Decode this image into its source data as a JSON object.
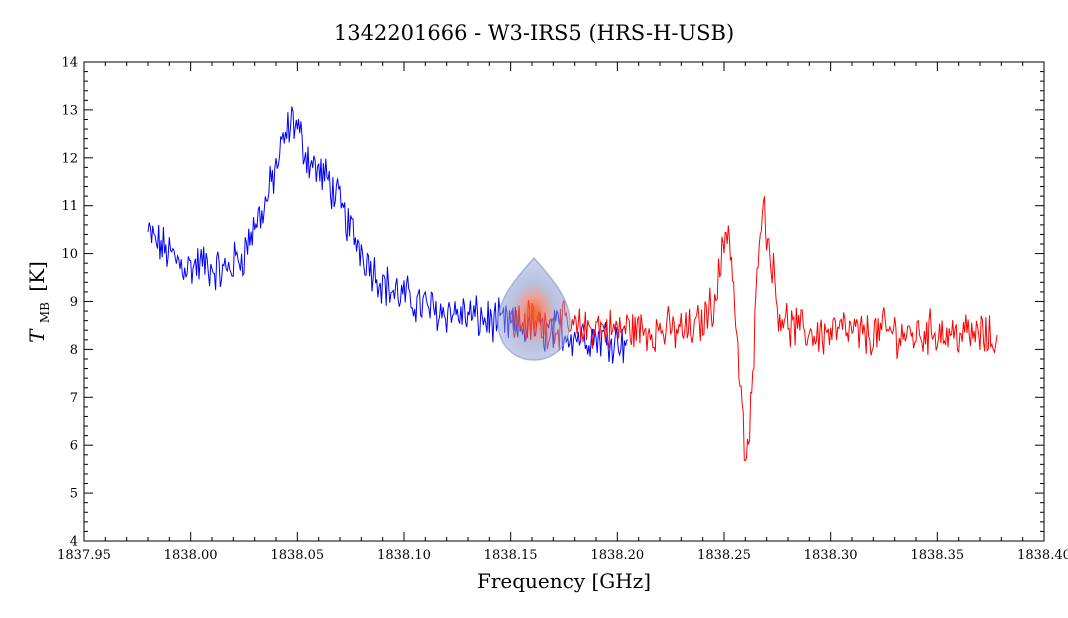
{
  "chart_data": {
    "type": "line",
    "title": "1342201666 - W3-IRS5 (HRS-H-USB)",
    "xlabel": "Frequency [GHz]",
    "ylabel": {
      "main": "T",
      "sub": "MB",
      "unit": "[K]"
    },
    "xlim": [
      1837.95,
      1838.4
    ],
    "ylim": [
      4,
      14
    ],
    "grid": false,
    "legend": "none",
    "x_ticks": [
      "1837.95",
      "1838.00",
      "1838.05",
      "1838.10",
      "1838.15",
      "1838.20",
      "1838.25",
      "1838.30",
      "1838.35",
      "1838.40"
    ],
    "x_tick_values": [
      1837.95,
      1838.0,
      1838.05,
      1838.1,
      1838.15,
      1838.2,
      1838.25,
      1838.3,
      1838.35,
      1838.4
    ],
    "y_ticks": [
      "4",
      "5",
      "6",
      "7",
      "8",
      "9",
      "10",
      "11",
      "12",
      "13",
      "14"
    ],
    "y_tick_values": [
      4,
      5,
      6,
      7,
      8,
      9,
      10,
      11,
      12,
      13,
      14
    ],
    "series": [
      {
        "color": "#0000ff",
        "x": [
          1837.98,
          1837.985,
          1837.99,
          1837.995,
          1838.0,
          1838.005,
          1838.01,
          1838.015,
          1838.02,
          1838.025,
          1838.03,
          1838.035,
          1838.04,
          1838.045,
          1838.048,
          1838.05,
          1838.055,
          1838.06,
          1838.065,
          1838.07,
          1838.075,
          1838.08,
          1838.085,
          1838.09,
          1838.095,
          1838.1,
          1838.105,
          1838.11,
          1838.115,
          1838.12,
          1838.125,
          1838.13,
          1838.135,
          1838.14,
          1838.145,
          1838.15,
          1838.155,
          1838.16,
          1838.165,
          1838.17,
          1838.175,
          1838.18,
          1838.185,
          1838.19,
          1838.195,
          1838.2,
          1838.205
        ],
        "values": [
          10.4,
          10.2,
          10.0,
          9.8,
          9.7,
          9.8,
          9.7,
          9.6,
          9.8,
          10.0,
          10.6,
          11.0,
          11.8,
          12.5,
          12.8,
          12.6,
          12.0,
          11.7,
          11.5,
          11.0,
          10.5,
          10.1,
          9.7,
          9.4,
          9.2,
          9.1,
          9.0,
          8.9,
          8.8,
          8.8,
          8.75,
          8.7,
          8.65,
          8.6,
          8.55,
          8.5,
          8.45,
          8.45,
          8.4,
          8.4,
          8.35,
          8.3,
          8.3,
          8.25,
          8.25,
          8.2,
          8.2
        ]
      },
      {
        "color": "#ff0000",
        "x": [
          1838.15,
          1838.155,
          1838.16,
          1838.165,
          1838.17,
          1838.175,
          1838.18,
          1838.185,
          1838.19,
          1838.195,
          1838.2,
          1838.205,
          1838.21,
          1838.215,
          1838.22,
          1838.225,
          1838.23,
          1838.235,
          1838.24,
          1838.245,
          1838.248,
          1838.25,
          1838.252,
          1838.254,
          1838.256,
          1838.258,
          1838.26,
          1838.262,
          1838.264,
          1838.266,
          1838.268,
          1838.27,
          1838.272,
          1838.275,
          1838.28,
          1838.285,
          1838.29,
          1838.295,
          1838.3,
          1838.305,
          1838.31,
          1838.315,
          1838.32,
          1838.325,
          1838.33,
          1838.335,
          1838.34,
          1838.345,
          1838.35,
          1838.355,
          1838.36,
          1838.365,
          1838.37,
          1838.375,
          1838.378
        ],
        "values": [
          8.5,
          8.6,
          8.6,
          8.5,
          8.5,
          8.5,
          8.4,
          8.4,
          8.5,
          8.4,
          8.4,
          8.45,
          8.4,
          8.4,
          8.4,
          8.4,
          8.4,
          8.4,
          8.6,
          9.0,
          9.6,
          10.3,
          10.6,
          9.6,
          8.2,
          7.0,
          5.6,
          6.3,
          7.8,
          10.2,
          11.1,
          10.5,
          10.0,
          8.9,
          8.5,
          8.4,
          8.35,
          8.3,
          8.35,
          8.4,
          8.35,
          8.3,
          8.3,
          8.4,
          8.35,
          8.3,
          8.3,
          8.35,
          8.4,
          8.3,
          8.35,
          8.3,
          8.3,
          8.2,
          8.3
        ]
      }
    ]
  }
}
